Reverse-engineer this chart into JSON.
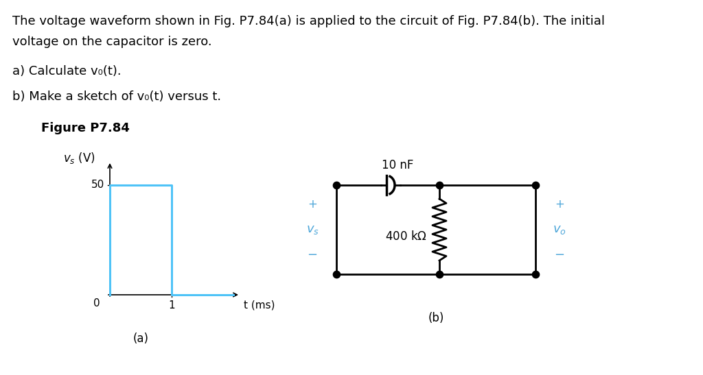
{
  "background_color": "#ffffff",
  "title_text_line1": "The voltage waveform shown in Fig. P7.84(a) is applied to the circuit of Fig. P7.84(b). The initial",
  "title_text_line2": "voltage on the capacitor is zero.",
  "question_a": "a) Calculate v₀(t).",
  "question_b": "b) Make a sketch of v₀(t) versus t.",
  "figure_label": "Figure P7.84",
  "waveform_color": "#4fc3f7",
  "label_color_blue": "#4da6d9",
  "font_size_body": 13,
  "font_size_small": 11,
  "font_size_fig": 11
}
